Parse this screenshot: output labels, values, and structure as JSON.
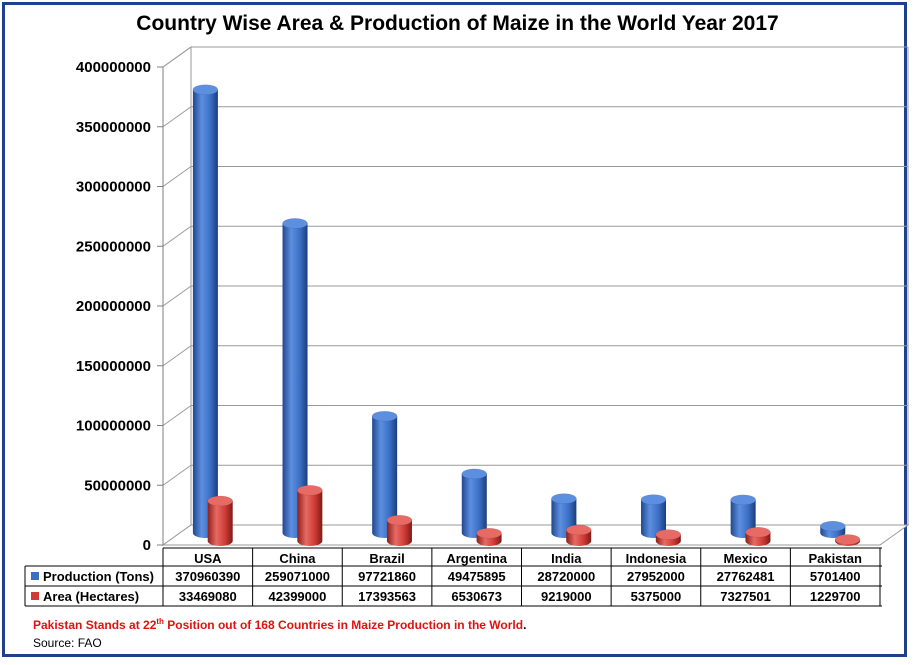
{
  "chart_data": {
    "type": "bar",
    "title": "Country Wise Area & Production of Maize in the World Year 2017",
    "categories": [
      "USA",
      "China",
      "Brazil",
      "Argentina",
      "India",
      "Indonesia",
      "Mexico",
      "Pakistan"
    ],
    "series": [
      {
        "name": "Production (Tons)",
        "color": "#3a6fc4",
        "values": [
          370960390,
          259071000,
          97721860,
          49475895,
          28720000,
          27952000,
          27762481,
          5701400
        ]
      },
      {
        "name": "Area (Hectares)",
        "color": "#cf3b36",
        "values": [
          33469080,
          42399000,
          17393563,
          6530673,
          9219000,
          5375000,
          7327501,
          1229700
        ]
      }
    ],
    "y_ticks": [
      "0",
      "50000000",
      "100000000",
      "150000000",
      "200000000",
      "250000000",
      "300000000",
      "350000000",
      "400000000"
    ],
    "ylim": [
      0,
      400000000
    ],
    "grid": true,
    "data_table": true
  },
  "note": {
    "prefix": "Pakistan Stands at 22",
    "superscript": "th",
    "suffix": " Position out of 168 Countries in Maize Production in the World",
    "end": "."
  },
  "source": "Source: FAO"
}
